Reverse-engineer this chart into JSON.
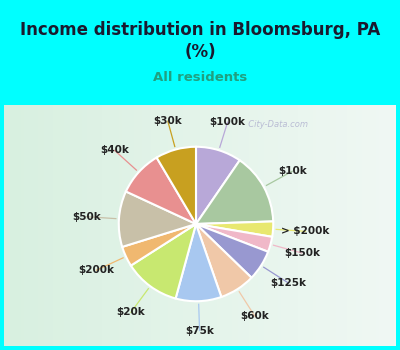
{
  "title": "Income distribution in Bloomsburg, PA\n(%)",
  "subtitle": "All residents",
  "background_top": "#00FFFF",
  "labels": [
    "$100k",
    "$10k",
    "> $200k",
    "$150k",
    "$125k",
    "$60k",
    "$75k",
    "$20k",
    "$200k",
    "$50k",
    "$40k",
    "$30k"
  ],
  "sizes": [
    9,
    14,
    3,
    3,
    6,
    7,
    9,
    11,
    4,
    11,
    9,
    8
  ],
  "colors": [
    "#b8a8d8",
    "#a8c8a0",
    "#e8e870",
    "#f0b8c8",
    "#9898d0",
    "#f0c8a8",
    "#a8c8f0",
    "#c8e870",
    "#f0b870",
    "#c8c0a8",
    "#e89090",
    "#c8a020"
  ],
  "startangle": 90,
  "watermark": "  City-Data.com"
}
